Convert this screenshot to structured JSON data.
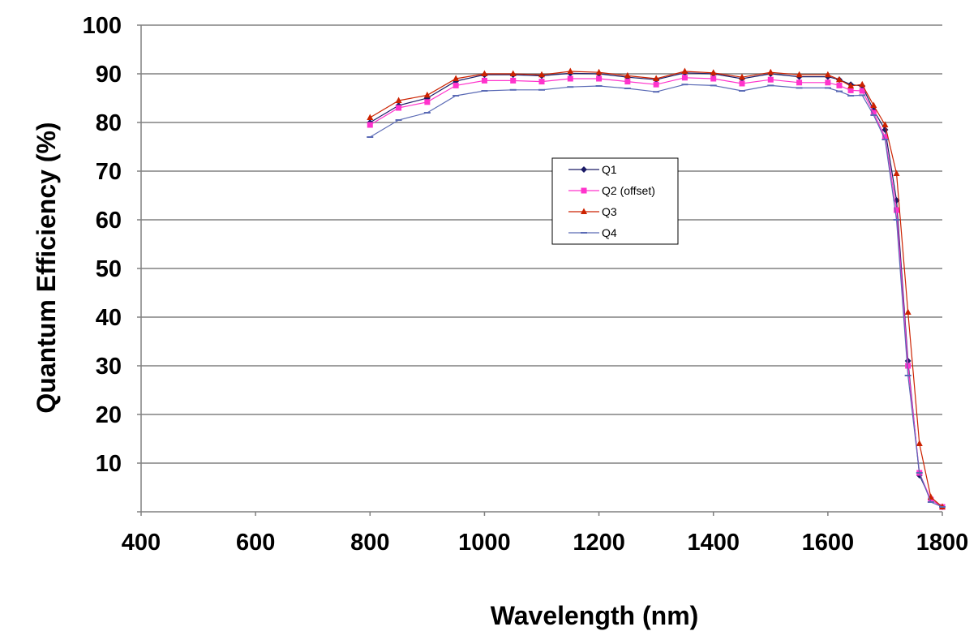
{
  "chart_data": {
    "type": "line",
    "title": "",
    "xlabel": "Wavelength (nm)",
    "ylabel": "Quantum Efficiency (%)",
    "xlim": [
      400,
      1800
    ],
    "ylim": [
      0,
      100
    ],
    "x_ticks": [
      400,
      600,
      800,
      1000,
      1200,
      1400,
      1600,
      1800
    ],
    "y_ticks": [
      10,
      20,
      30,
      40,
      50,
      60,
      70,
      80,
      90,
      100
    ],
    "grid": "horizontal",
    "legend_position": "center-right",
    "x": [
      800,
      850,
      900,
      950,
      1000,
      1050,
      1100,
      1150,
      1200,
      1250,
      1300,
      1350,
      1400,
      1450,
      1500,
      1550,
      1600,
      1620,
      1640,
      1660,
      1680,
      1700,
      1720,
      1740,
      1760,
      1780,
      1800
    ],
    "series": [
      {
        "name": "Q1",
        "color": "#1a1a66",
        "marker": "diamond",
        "values": [
          80,
          83.5,
          85,
          88.5,
          89.8,
          89.8,
          89.6,
          90.1,
          90,
          89.3,
          88.8,
          90.2,
          90,
          89,
          90,
          89.4,
          89.4,
          88.8,
          87.8,
          87.5,
          82.5,
          78.5,
          64,
          31,
          7.5,
          2.5,
          1
        ]
      },
      {
        "name": "Q2 (offset)",
        "color": "#ff33cc",
        "marker": "square",
        "values": [
          79.5,
          83,
          84.2,
          87.6,
          88.6,
          88.6,
          88.4,
          89,
          89,
          88.4,
          87.8,
          89.2,
          89,
          88,
          88.8,
          88.2,
          88.2,
          87.6,
          86.6,
          86.5,
          82,
          77,
          62,
          30,
          8,
          2.5,
          1
        ]
      },
      {
        "name": "Q3",
        "color": "#cc2200",
        "marker": "triangle",
        "values": [
          81,
          84.5,
          85.6,
          89,
          90,
          90,
          89.8,
          90.5,
          90.3,
          89.6,
          89,
          90.5,
          90.2,
          89.3,
          90.3,
          89.8,
          89.8,
          88.8,
          87.5,
          87.8,
          83.5,
          79.5,
          69.5,
          41,
          14,
          3,
          1
        ]
      },
      {
        "name": "Q4",
        "color": "#5a6ab5",
        "marker": "dash",
        "values": [
          77,
          80.5,
          82,
          85.5,
          86.5,
          86.7,
          86.7,
          87.3,
          87.5,
          87,
          86.3,
          87.8,
          87.6,
          86.5,
          87.6,
          87.1,
          87.1,
          86.4,
          85.5,
          85.6,
          81.5,
          76.5,
          60,
          28,
          8,
          2,
          1
        ]
      }
    ]
  }
}
